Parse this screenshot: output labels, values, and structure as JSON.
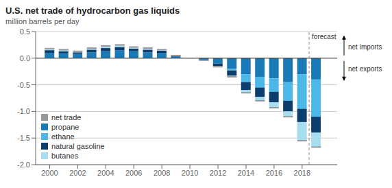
{
  "chart_data": {
    "type": "bar",
    "stacked": true,
    "title": "U.S. net trade of hydrocarbon gas liquids",
    "subtitle": "million barrels per day",
    "x": [
      2000,
      2001,
      2002,
      2003,
      2004,
      2005,
      2006,
      2007,
      2008,
      2009,
      2010,
      2011,
      2012,
      2013,
      2014,
      2015,
      2016,
      2017,
      2018,
      2019
    ],
    "xlim": [
      1999,
      2020.5
    ],
    "xticks": [
      2000,
      2002,
      2004,
      2006,
      2008,
      2010,
      2012,
      2014,
      2016,
      2018
    ],
    "ylim": [
      -2.0,
      0.5
    ],
    "yticks": [
      {
        "value": -2,
        "label": "-2.0"
      },
      -1.5,
      {
        "value": -1,
        "label": "-1.0"
      },
      -0.5,
      {
        "value": 0,
        "label": "0.0"
      },
      0.5
    ],
    "grid": true,
    "legend": "lower left",
    "series": [
      {
        "name": "net trade",
        "type": "scatter",
        "marker": "hline",
        "color": "#999999",
        "values": [
          0.18,
          0.16,
          0.13,
          0.19,
          0.23,
          0.25,
          0.21,
          0.19,
          0.16,
          0.05,
          0.0,
          -0.04,
          -0.16,
          -0.35,
          -0.65,
          -0.8,
          -0.93,
          -1.1,
          -1.55,
          -1.67
        ]
      },
      {
        "name": "propane",
        "color": "#1a7ab5",
        "values": [
          0.1,
          0.09,
          0.08,
          0.11,
          0.13,
          0.15,
          0.13,
          0.11,
          0.1,
          0.04,
          0.0,
          -0.03,
          -0.1,
          -0.2,
          -0.3,
          -0.35,
          -0.38,
          -0.45,
          -0.3,
          -0.4
        ]
      },
      {
        "name": "ethane",
        "color": "#4db8e8",
        "values": [
          0.0,
          0.0,
          0.0,
          0.0,
          0.0,
          0.0,
          0.0,
          0.0,
          0.0,
          0.0,
          0.0,
          0.0,
          0.0,
          -0.03,
          -0.15,
          -0.2,
          -0.25,
          -0.35,
          -0.65,
          -0.7
        ]
      },
      {
        "name": "natural gasoline",
        "color": "#0d3d6b",
        "values": [
          0.05,
          0.04,
          0.03,
          0.05,
          0.06,
          0.06,
          0.05,
          0.05,
          0.04,
          0.01,
          0.0,
          -0.01,
          -0.05,
          -0.1,
          -0.15,
          -0.18,
          -0.2,
          -0.2,
          -0.25,
          -0.3
        ]
      },
      {
        "name": "butanes",
        "color": "#a8ddf0",
        "values": [
          0.03,
          0.03,
          0.02,
          0.03,
          0.04,
          0.04,
          0.03,
          0.03,
          0.02,
          0.0,
          0.0,
          0.0,
          -0.01,
          -0.02,
          -0.05,
          -0.07,
          -0.1,
          -0.1,
          -0.35,
          -0.27
        ]
      }
    ],
    "annotations": [
      {
        "text": "forecast",
        "x": 2018.5
      },
      {
        "text": "net imports"
      },
      {
        "text": "net exports"
      }
    ]
  }
}
